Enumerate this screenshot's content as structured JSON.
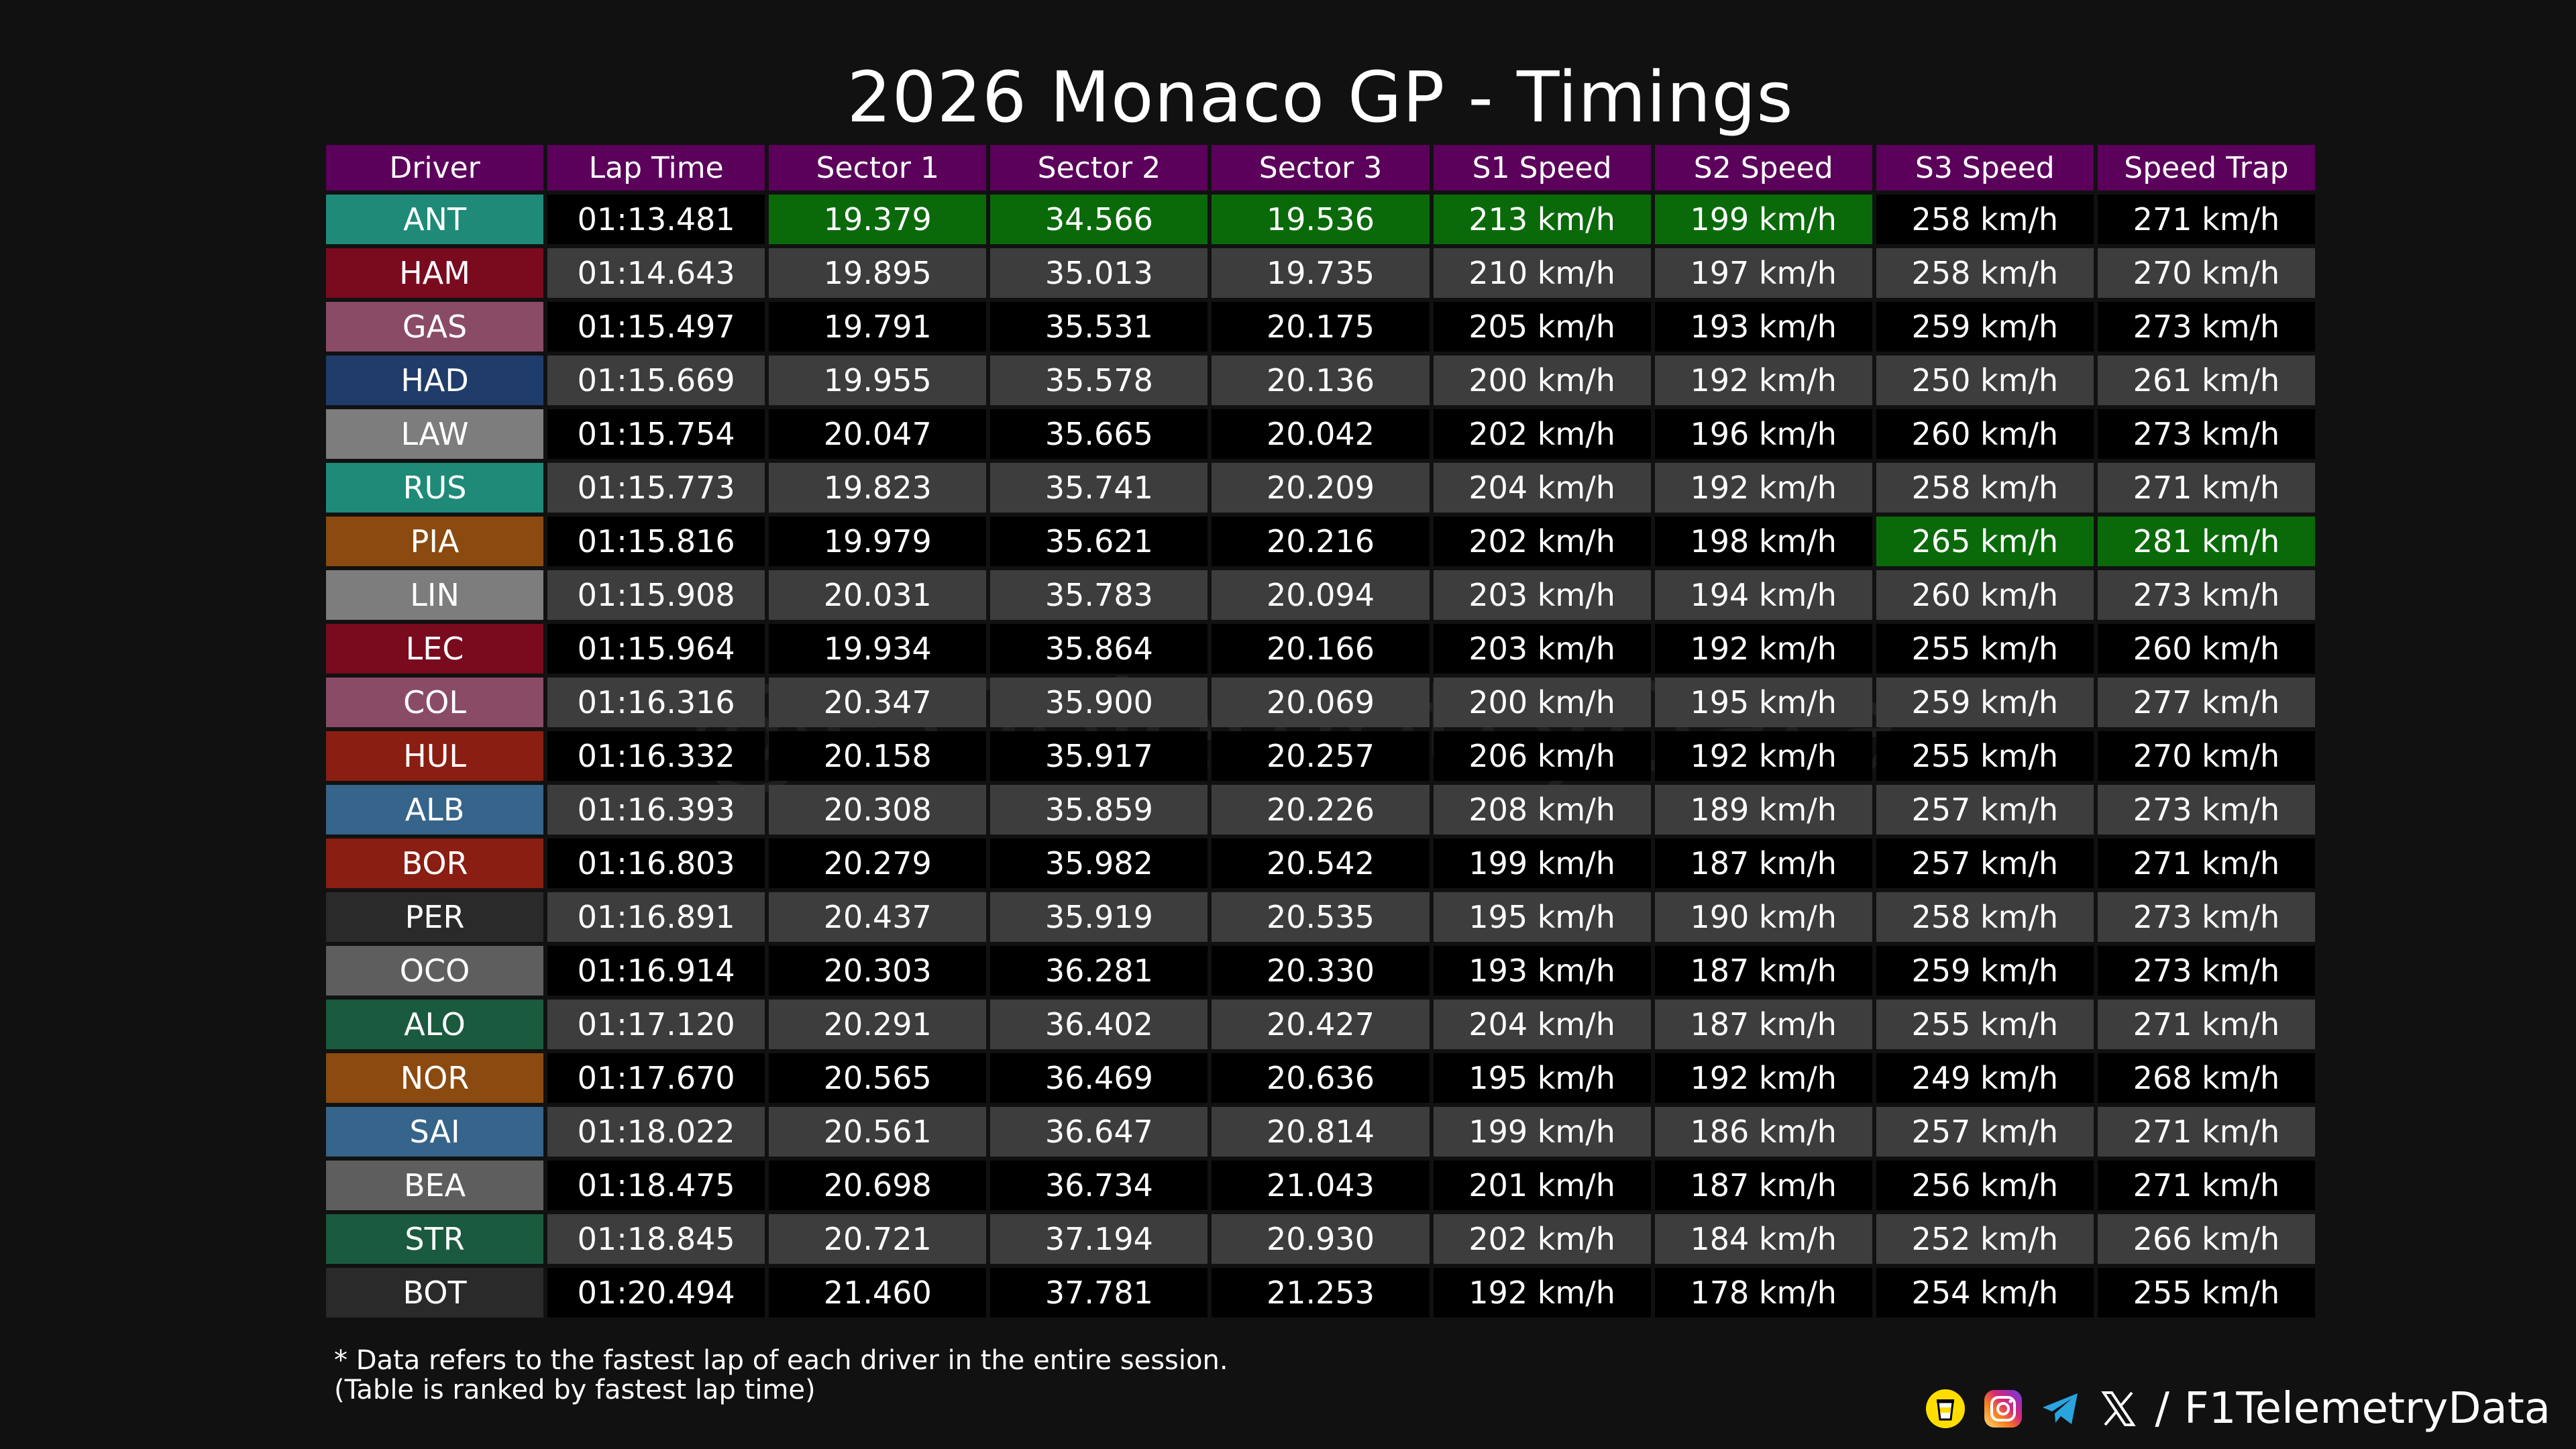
{
  "title": "2026 Monaco GP - Timings",
  "watermark": "@F1TelemetryData",
  "columns": [
    "Driver",
    "Lap Time",
    "Sector 1",
    "Sector 2",
    "Sector 3",
    "S1 Speed",
    "S2 Speed",
    "S3 Speed",
    "Speed Trap"
  ],
  "rows": [
    {
      "driver": "ANT",
      "color": "#1f8a78",
      "values": [
        "01:13.481",
        "19.379",
        "34.566",
        "19.536",
        "213 km/h",
        "199 km/h",
        "258 km/h",
        "271 km/h"
      ],
      "best": [
        false,
        true,
        true,
        true,
        true,
        true,
        false,
        false
      ]
    },
    {
      "driver": "HAM",
      "color": "#7a0a1e",
      "values": [
        "01:14.643",
        "19.895",
        "35.013",
        "19.735",
        "210 km/h",
        "197 km/h",
        "258 km/h",
        "270 km/h"
      ],
      "best": [
        false,
        false,
        false,
        false,
        false,
        false,
        false,
        false
      ]
    },
    {
      "driver": "GAS",
      "color": "#8a4b66",
      "values": [
        "01:15.497",
        "19.791",
        "35.531",
        "20.175",
        "205 km/h",
        "193 km/h",
        "259 km/h",
        "273 km/h"
      ],
      "best": [
        false,
        false,
        false,
        false,
        false,
        false,
        false,
        false
      ]
    },
    {
      "driver": "HAD",
      "color": "#1f3c6a",
      "values": [
        "01:15.669",
        "19.955",
        "35.578",
        "20.136",
        "200 km/h",
        "192 km/h",
        "250 km/h",
        "261 km/h"
      ],
      "best": [
        false,
        false,
        false,
        false,
        false,
        false,
        false,
        false
      ]
    },
    {
      "driver": "LAW",
      "color": "#7d7d7d",
      "values": [
        "01:15.754",
        "20.047",
        "35.665",
        "20.042",
        "202 km/h",
        "196 km/h",
        "260 km/h",
        "273 km/h"
      ],
      "best": [
        false,
        false,
        false,
        false,
        false,
        false,
        false,
        false
      ]
    },
    {
      "driver": "RUS",
      "color": "#1f8a78",
      "values": [
        "01:15.773",
        "19.823",
        "35.741",
        "20.209",
        "204 km/h",
        "192 km/h",
        "258 km/h",
        "271 km/h"
      ],
      "best": [
        false,
        false,
        false,
        false,
        false,
        false,
        false,
        false
      ]
    },
    {
      "driver": "PIA",
      "color": "#8a4a10",
      "values": [
        "01:15.816",
        "19.979",
        "35.621",
        "20.216",
        "202 km/h",
        "198 km/h",
        "265 km/h",
        "281 km/h"
      ],
      "best": [
        false,
        false,
        false,
        false,
        false,
        false,
        true,
        true
      ]
    },
    {
      "driver": "LIN",
      "color": "#7d7d7d",
      "values": [
        "01:15.908",
        "20.031",
        "35.783",
        "20.094",
        "203 km/h",
        "194 km/h",
        "260 km/h",
        "273 km/h"
      ],
      "best": [
        false,
        false,
        false,
        false,
        false,
        false,
        false,
        false
      ]
    },
    {
      "driver": "LEC",
      "color": "#7a0a1e",
      "values": [
        "01:15.964",
        "19.934",
        "35.864",
        "20.166",
        "203 km/h",
        "192 km/h",
        "255 km/h",
        "260 km/h"
      ],
      "best": [
        false,
        false,
        false,
        false,
        false,
        false,
        false,
        false
      ]
    },
    {
      "driver": "COL",
      "color": "#8a4b66",
      "values": [
        "01:16.316",
        "20.347",
        "35.900",
        "20.069",
        "200 km/h",
        "195 km/h",
        "259 km/h",
        "277 km/h"
      ],
      "best": [
        false,
        false,
        false,
        false,
        false,
        false,
        false,
        false
      ]
    },
    {
      "driver": "HUL",
      "color": "#8a1e12",
      "values": [
        "01:16.332",
        "20.158",
        "35.917",
        "20.257",
        "206 km/h",
        "192 km/h",
        "255 km/h",
        "270 km/h"
      ],
      "best": [
        false,
        false,
        false,
        false,
        false,
        false,
        false,
        false
      ]
    },
    {
      "driver": "ALB",
      "color": "#36648a",
      "values": [
        "01:16.393",
        "20.308",
        "35.859",
        "20.226",
        "208 km/h",
        "189 km/h",
        "257 km/h",
        "273 km/h"
      ],
      "best": [
        false,
        false,
        false,
        false,
        false,
        false,
        false,
        false
      ]
    },
    {
      "driver": "BOR",
      "color": "#8a1e12",
      "values": [
        "01:16.803",
        "20.279",
        "35.982",
        "20.542",
        "199 km/h",
        "187 km/h",
        "257 km/h",
        "271 km/h"
      ],
      "best": [
        false,
        false,
        false,
        false,
        false,
        false,
        false,
        false
      ]
    },
    {
      "driver": "PER",
      "color": "#2a2a2a",
      "values": [
        "01:16.891",
        "20.437",
        "35.919",
        "20.535",
        "195 km/h",
        "190 km/h",
        "258 km/h",
        "273 km/h"
      ],
      "best": [
        false,
        false,
        false,
        false,
        false,
        false,
        false,
        false
      ]
    },
    {
      "driver": "OCO",
      "color": "#5e5e5e",
      "values": [
        "01:16.914",
        "20.303",
        "36.281",
        "20.330",
        "193 km/h",
        "187 km/h",
        "259 km/h",
        "273 km/h"
      ],
      "best": [
        false,
        false,
        false,
        false,
        false,
        false,
        false,
        false
      ]
    },
    {
      "driver": "ALO",
      "color": "#1a5a3e",
      "values": [
        "01:17.120",
        "20.291",
        "36.402",
        "20.427",
        "204 km/h",
        "187 km/h",
        "255 km/h",
        "271 km/h"
      ],
      "best": [
        false,
        false,
        false,
        false,
        false,
        false,
        false,
        false
      ]
    },
    {
      "driver": "NOR",
      "color": "#8a4a10",
      "values": [
        "01:17.670",
        "20.565",
        "36.469",
        "20.636",
        "195 km/h",
        "192 km/h",
        "249 km/h",
        "268 km/h"
      ],
      "best": [
        false,
        false,
        false,
        false,
        false,
        false,
        false,
        false
      ]
    },
    {
      "driver": "SAI",
      "color": "#36648a",
      "values": [
        "01:18.022",
        "20.561",
        "36.647",
        "20.814",
        "199 km/h",
        "186 km/h",
        "257 km/h",
        "271 km/h"
      ],
      "best": [
        false,
        false,
        false,
        false,
        false,
        false,
        false,
        false
      ]
    },
    {
      "driver": "BEA",
      "color": "#5e5e5e",
      "values": [
        "01:18.475",
        "20.698",
        "36.734",
        "21.043",
        "201 km/h",
        "187 km/h",
        "256 km/h",
        "271 km/h"
      ],
      "best": [
        false,
        false,
        false,
        false,
        false,
        false,
        false,
        false
      ]
    },
    {
      "driver": "STR",
      "color": "#1a5a3e",
      "values": [
        "01:18.845",
        "20.721",
        "37.194",
        "20.930",
        "202 km/h",
        "184 km/h",
        "252 km/h",
        "266 km/h"
      ],
      "best": [
        false,
        false,
        false,
        false,
        false,
        false,
        false,
        false
      ]
    },
    {
      "driver": "BOT",
      "color": "#2a2a2a",
      "values": [
        "01:20.494",
        "21.460",
        "37.781",
        "21.253",
        "192 km/h",
        "178 km/h",
        "254 km/h",
        "255 km/h"
      ],
      "best": [
        false,
        false,
        false,
        false,
        false,
        false,
        false,
        false
      ]
    }
  ],
  "footnote": {
    "line1": "* Data refers to the fastest lap of each driver in the entire session.",
    "line2": "(Table is ranked by fastest lap time)"
  },
  "credits": {
    "icons": [
      "buymeacoffee-icon",
      "instagram-icon",
      "telegram-icon",
      "x-icon"
    ],
    "separator": "/",
    "handle": "F1TelemetryData"
  },
  "colors": {
    "header_bg": "#5b005b",
    "best_bg": "#0a6a0a",
    "row_dark": "#000000",
    "row_light": "#3d3d3d",
    "page_bg": "#111111"
  }
}
